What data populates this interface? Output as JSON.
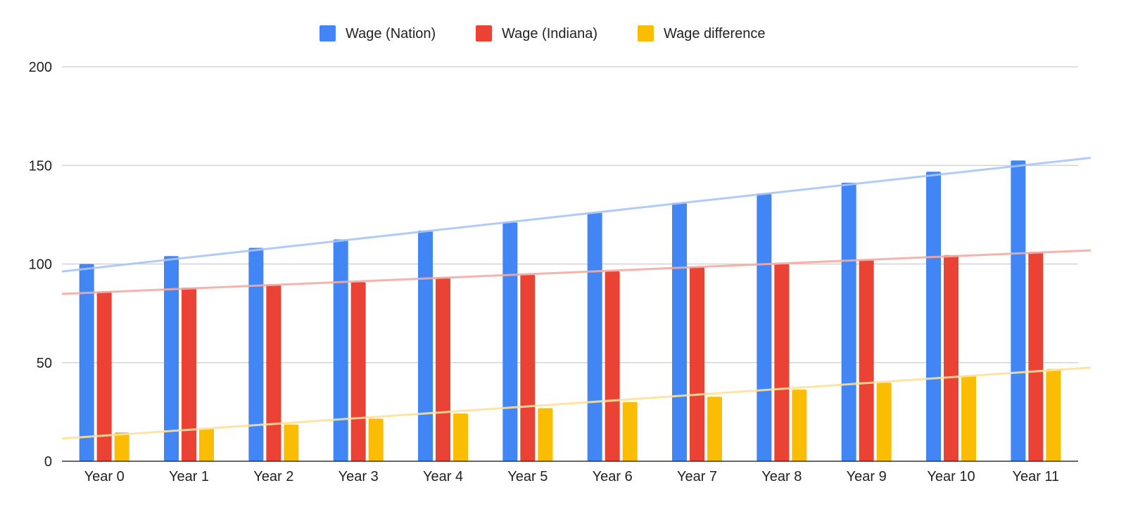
{
  "chart_data": {
    "type": "bar",
    "categories": [
      "Year 0",
      "Year 1",
      "Year 2",
      "Year 3",
      "Year 4",
      "Year 5",
      "Year 6",
      "Year 7",
      "Year 8",
      "Year 9",
      "Year 10",
      "Year 11"
    ],
    "series": [
      {
        "name": "Wage (Nation)",
        "color": "#4285f4",
        "trend_color": "#a9c6f9",
        "values": [
          100,
          104,
          108.2,
          112.5,
          117,
          121.1,
          126,
          131,
          135.8,
          141.2,
          146.8,
          152.5
        ]
      },
      {
        "name": "Wage (Indiana)",
        "color": "#ea4335",
        "trend_color": "#f5aba4",
        "values": [
          86,
          88,
          89.5,
          90.8,
          93,
          94.5,
          96.3,
          98.5,
          99.9,
          102,
          104.5,
          106
        ]
      },
      {
        "name": "Wage difference",
        "color": "#fbbc04",
        "trend_color": "#fde29a",
        "values": [
          14.6,
          16.5,
          18.6,
          21.6,
          24.2,
          26.9,
          30.0,
          32.7,
          36.3,
          39.8,
          43.5,
          46.8
        ]
      }
    ],
    "trendlines": true,
    "title": "",
    "xlabel": "",
    "ylabel": "",
    "ylim": [
      0,
      200
    ],
    "yticks": [
      "0",
      "50",
      "100",
      "150",
      "200"
    ],
    "grid": true,
    "legend_position": "top"
  }
}
